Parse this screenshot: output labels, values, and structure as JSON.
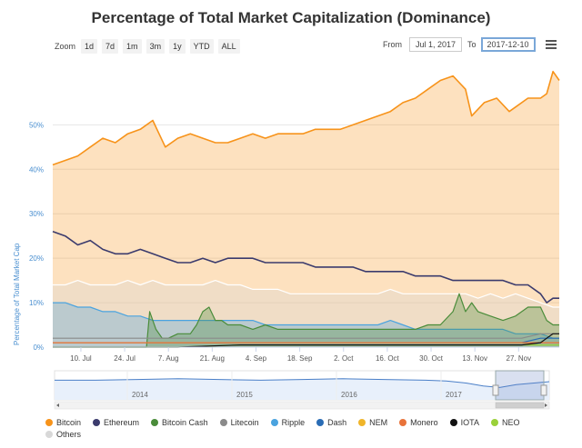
{
  "title": "Percentage of Total Market Capitalization (Dominance)",
  "zoom": {
    "label": "Zoom",
    "buttons": [
      "1d",
      "7d",
      "1m",
      "3m",
      "1y",
      "YTD",
      "ALL"
    ]
  },
  "range": {
    "from_label": "From",
    "from_value": "Jul 1, 2017",
    "to_label": "To",
    "to_value": "2017-12-10"
  },
  "icons": {
    "menu": "hamburger-menu-icon"
  },
  "chart_data": {
    "type": "area",
    "title": "Percentage of Total Market Capitalization (Dominance)",
    "ylabel": "Percentage of Total Market Cap",
    "xlabel": "",
    "x_range": [
      "2017-07-01",
      "2017-12-10"
    ],
    "ylim": [
      0,
      65
    ],
    "y_ticks": [
      0,
      10,
      20,
      30,
      40,
      50
    ],
    "y_tick_labels": [
      "0%",
      "10%",
      "20%",
      "30%",
      "40%",
      "50%"
    ],
    "x_tick_labels": [
      "10. Jul",
      "24. Jul",
      "7. Aug",
      "21. Aug",
      "4. Sep",
      "18. Sep",
      "2. Oct",
      "16. Oct",
      "30. Oct",
      "13. Nov",
      "27. Nov"
    ],
    "x_tick_days": [
      9,
      23,
      37,
      51,
      65,
      79,
      93,
      107,
      121,
      135,
      149
    ],
    "grid": true,
    "legend_position": "bottom",
    "series": [
      {
        "name": "Bitcoin",
        "color": "#f7931a",
        "fill": true,
        "points": [
          [
            0,
            41
          ],
          [
            4,
            42
          ],
          [
            8,
            43
          ],
          [
            12,
            45
          ],
          [
            16,
            47
          ],
          [
            20,
            46
          ],
          [
            24,
            48
          ],
          [
            28,
            49
          ],
          [
            32,
            51
          ],
          [
            34,
            48
          ],
          [
            36,
            45
          ],
          [
            40,
            47
          ],
          [
            44,
            48
          ],
          [
            48,
            47
          ],
          [
            52,
            46
          ],
          [
            56,
            46
          ],
          [
            60,
            47
          ],
          [
            64,
            48
          ],
          [
            68,
            47
          ],
          [
            72,
            48
          ],
          [
            76,
            48
          ],
          [
            80,
            48
          ],
          [
            84,
            49
          ],
          [
            88,
            49
          ],
          [
            92,
            49
          ],
          [
            96,
            50
          ],
          [
            100,
            51
          ],
          [
            104,
            52
          ],
          [
            108,
            53
          ],
          [
            112,
            55
          ],
          [
            116,
            56
          ],
          [
            120,
            58
          ],
          [
            124,
            60
          ],
          [
            128,
            61
          ],
          [
            132,
            58
          ],
          [
            134,
            52
          ],
          [
            138,
            55
          ],
          [
            142,
            56
          ],
          [
            146,
            53
          ],
          [
            148,
            54
          ],
          [
            152,
            56
          ],
          [
            156,
            56
          ],
          [
            158,
            57
          ],
          [
            160,
            62
          ],
          [
            162,
            60
          ]
        ]
      },
      {
        "name": "Ethereum",
        "color": "#3b3b6d",
        "fill": false,
        "points": [
          [
            0,
            26
          ],
          [
            4,
            25
          ],
          [
            8,
            23
          ],
          [
            12,
            24
          ],
          [
            16,
            22
          ],
          [
            20,
            21
          ],
          [
            24,
            21
          ],
          [
            28,
            22
          ],
          [
            32,
            21
          ],
          [
            36,
            20
          ],
          [
            40,
            19
          ],
          [
            44,
            19
          ],
          [
            48,
            20
          ],
          [
            52,
            19
          ],
          [
            56,
            20
          ],
          [
            60,
            20
          ],
          [
            64,
            20
          ],
          [
            68,
            19
          ],
          [
            72,
            19
          ],
          [
            76,
            19
          ],
          [
            80,
            19
          ],
          [
            84,
            18
          ],
          [
            88,
            18
          ],
          [
            92,
            18
          ],
          [
            96,
            18
          ],
          [
            100,
            17
          ],
          [
            104,
            17
          ],
          [
            108,
            17
          ],
          [
            112,
            17
          ],
          [
            116,
            16
          ],
          [
            120,
            16
          ],
          [
            124,
            16
          ],
          [
            128,
            15
          ],
          [
            132,
            15
          ],
          [
            136,
            15
          ],
          [
            140,
            15
          ],
          [
            144,
            15
          ],
          [
            148,
            14
          ],
          [
            152,
            14
          ],
          [
            156,
            12
          ],
          [
            158,
            10
          ],
          [
            160,
            11
          ],
          [
            162,
            11
          ]
        ]
      },
      {
        "name": "Bitcoin Cash",
        "color": "#4a8c3a",
        "fill": true,
        "points": [
          [
            0,
            0
          ],
          [
            30,
            0
          ],
          [
            31,
            8
          ],
          [
            33,
            4
          ],
          [
            35,
            2
          ],
          [
            37,
            2
          ],
          [
            40,
            3
          ],
          [
            44,
            3
          ],
          [
            46,
            5
          ],
          [
            48,
            8
          ],
          [
            50,
            9
          ],
          [
            52,
            6
          ],
          [
            54,
            6
          ],
          [
            56,
            5
          ],
          [
            60,
            5
          ],
          [
            64,
            4
          ],
          [
            68,
            5
          ],
          [
            72,
            4
          ],
          [
            76,
            4
          ],
          [
            80,
            4
          ],
          [
            84,
            4
          ],
          [
            88,
            4
          ],
          [
            92,
            4
          ],
          [
            96,
            4
          ],
          [
            100,
            4
          ],
          [
            104,
            4
          ],
          [
            108,
            4
          ],
          [
            112,
            4
          ],
          [
            116,
            4
          ],
          [
            120,
            5
          ],
          [
            124,
            5
          ],
          [
            128,
            8
          ],
          [
            130,
            12
          ],
          [
            132,
            8
          ],
          [
            134,
            10
          ],
          [
            136,
            8
          ],
          [
            140,
            7
          ],
          [
            144,
            6
          ],
          [
            148,
            7
          ],
          [
            152,
            9
          ],
          [
            156,
            9
          ],
          [
            158,
            6
          ],
          [
            160,
            5
          ],
          [
            162,
            5
          ]
        ]
      },
      {
        "name": "Litecoin",
        "color": "#8a8a8a",
        "fill": false,
        "points": [
          [
            0,
            2
          ],
          [
            20,
            2
          ],
          [
            40,
            2
          ],
          [
            60,
            2
          ],
          [
            80,
            2
          ],
          [
            100,
            2
          ],
          [
            120,
            2
          ],
          [
            140,
            2
          ],
          [
            150,
            2
          ],
          [
            156,
            3
          ],
          [
            160,
            3
          ],
          [
            162,
            3
          ]
        ]
      },
      {
        "name": "Ripple",
        "color": "#4aa3df",
        "fill": true,
        "points": [
          [
            0,
            10
          ],
          [
            4,
            10
          ],
          [
            8,
            9
          ],
          [
            12,
            9
          ],
          [
            16,
            8
          ],
          [
            20,
            8
          ],
          [
            24,
            7
          ],
          [
            28,
            7
          ],
          [
            32,
            6
          ],
          [
            36,
            6
          ],
          [
            40,
            6
          ],
          [
            44,
            6
          ],
          [
            48,
            6
          ],
          [
            52,
            6
          ],
          [
            56,
            6
          ],
          [
            60,
            6
          ],
          [
            64,
            6
          ],
          [
            68,
            5
          ],
          [
            72,
            5
          ],
          [
            76,
            5
          ],
          [
            80,
            5
          ],
          [
            84,
            5
          ],
          [
            88,
            5
          ],
          [
            92,
            5
          ],
          [
            96,
            5
          ],
          [
            100,
            5
          ],
          [
            104,
            5
          ],
          [
            108,
            6
          ],
          [
            112,
            5
          ],
          [
            116,
            4
          ],
          [
            120,
            4
          ],
          [
            124,
            4
          ],
          [
            128,
            4
          ],
          [
            132,
            4
          ],
          [
            136,
            4
          ],
          [
            140,
            4
          ],
          [
            144,
            4
          ],
          [
            148,
            3
          ],
          [
            152,
            3
          ],
          [
            156,
            3
          ],
          [
            160,
            2
          ],
          [
            162,
            2
          ]
        ]
      },
      {
        "name": "Dash",
        "color": "#2a6cb5",
        "fill": false,
        "points": [
          [
            0,
            1
          ],
          [
            40,
            1
          ],
          [
            80,
            1
          ],
          [
            120,
            1
          ],
          [
            150,
            1
          ],
          [
            156,
            2
          ],
          [
            162,
            2
          ]
        ]
      },
      {
        "name": "NEM",
        "color": "#f0b52a",
        "fill": false,
        "points": [
          [
            0,
            1
          ],
          [
            40,
            1
          ],
          [
            80,
            1
          ],
          [
            120,
            1
          ],
          [
            162,
            1
          ]
        ]
      },
      {
        "name": "Monero",
        "color": "#e8733a",
        "fill": false,
        "points": [
          [
            0,
            1
          ],
          [
            40,
            1
          ],
          [
            80,
            1
          ],
          [
            120,
            1
          ],
          [
            162,
            1
          ]
        ]
      },
      {
        "name": "IOTA",
        "color": "#111111",
        "fill": false,
        "points": [
          [
            0,
            0
          ],
          [
            40,
            0
          ],
          [
            60,
            0.5
          ],
          [
            80,
            0.5
          ],
          [
            100,
            0.5
          ],
          [
            120,
            0.5
          ],
          [
            140,
            0.5
          ],
          [
            150,
            0.5
          ],
          [
            156,
            1
          ],
          [
            158,
            2
          ],
          [
            160,
            3
          ],
          [
            162,
            3
          ]
        ]
      },
      {
        "name": "NEO",
        "color": "#9ad13a",
        "fill": false,
        "points": [
          [
            0,
            0
          ],
          [
            40,
            0
          ],
          [
            60,
            0.5
          ],
          [
            80,
            0.5
          ],
          [
            100,
            0.5
          ],
          [
            120,
            0.5
          ],
          [
            162,
            0.5
          ]
        ]
      },
      {
        "name": "Others",
        "color": "#d8d8d8",
        "stroke": "#ffffff",
        "fill": true,
        "points": [
          [
            0,
            14
          ],
          [
            4,
            14
          ],
          [
            8,
            15
          ],
          [
            12,
            14
          ],
          [
            16,
            14
          ],
          [
            20,
            14
          ],
          [
            24,
            15
          ],
          [
            28,
            14
          ],
          [
            32,
            15
          ],
          [
            36,
            14
          ],
          [
            40,
            14
          ],
          [
            44,
            14
          ],
          [
            48,
            14
          ],
          [
            52,
            15
          ],
          [
            56,
            14
          ],
          [
            60,
            14
          ],
          [
            64,
            13
          ],
          [
            68,
            13
          ],
          [
            72,
            13
          ],
          [
            76,
            12
          ],
          [
            80,
            12
          ],
          [
            84,
            12
          ],
          [
            88,
            12
          ],
          [
            92,
            12
          ],
          [
            96,
            12
          ],
          [
            100,
            12
          ],
          [
            104,
            12
          ],
          [
            108,
            13
          ],
          [
            112,
            12
          ],
          [
            116,
            12
          ],
          [
            120,
            12
          ],
          [
            124,
            12
          ],
          [
            128,
            12
          ],
          [
            132,
            12
          ],
          [
            136,
            11
          ],
          [
            140,
            12
          ],
          [
            144,
            11
          ],
          [
            148,
            12
          ],
          [
            152,
            11
          ],
          [
            156,
            10
          ],
          [
            160,
            9
          ],
          [
            162,
            9
          ]
        ]
      }
    ],
    "navigator": {
      "x_tick_labels": [
        "2014",
        "2015",
        "2016",
        "2017"
      ],
      "points": [
        [
          0,
          52
        ],
        [
          10,
          52
        ],
        [
          20,
          53
        ],
        [
          30,
          54
        ],
        [
          40,
          53
        ],
        [
          50,
          52
        ],
        [
          60,
          53
        ],
        [
          70,
          54
        ],
        [
          80,
          53
        ],
        [
          90,
          52
        ],
        [
          95,
          51
        ],
        [
          100,
          48
        ],
        [
          104,
          44
        ],
        [
          108,
          42
        ],
        [
          112,
          46
        ],
        [
          116,
          48
        ],
        [
          120,
          50
        ]
      ]
    }
  }
}
